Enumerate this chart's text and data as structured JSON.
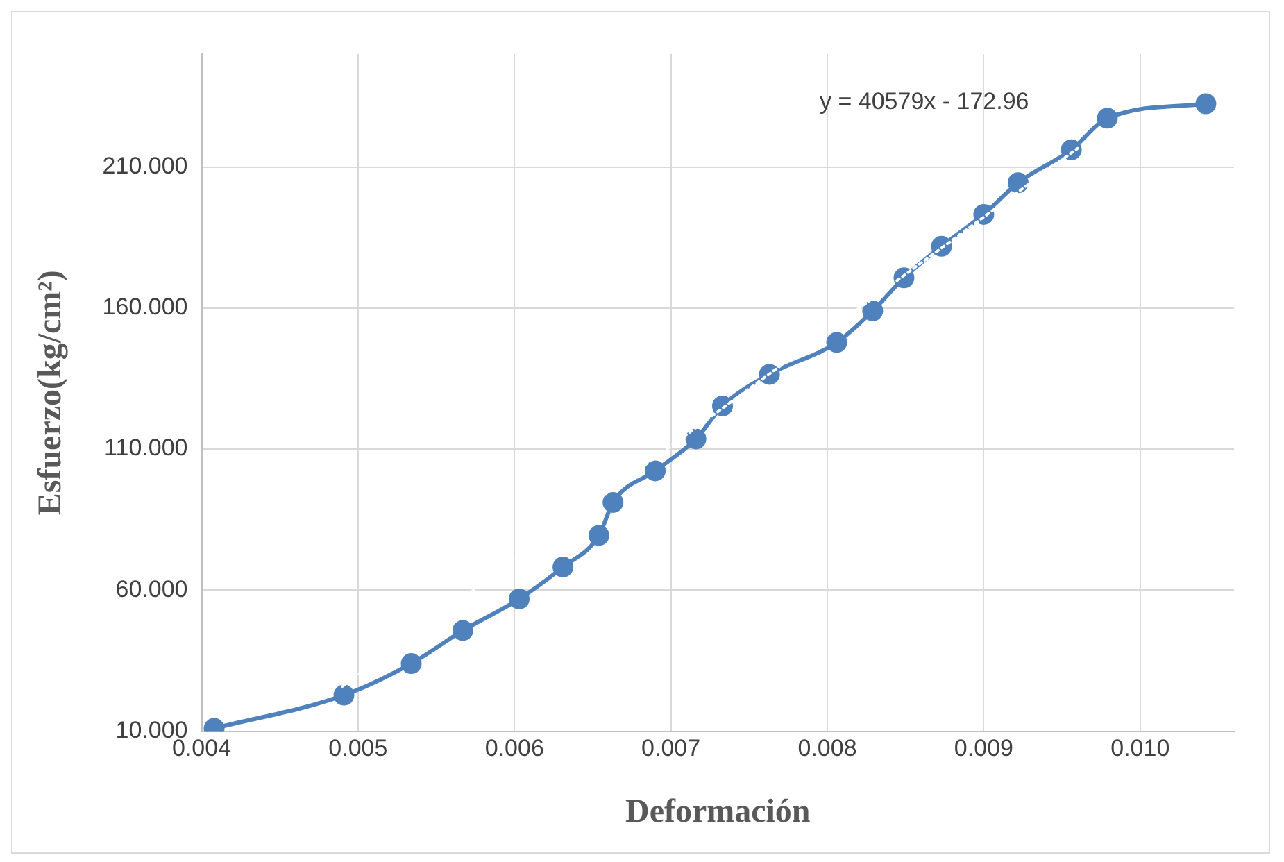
{
  "chart_data": {
    "type": "line",
    "xlabel": "Deformación",
    "ylabel": "Esfuerzo(kg/cm²)",
    "annotations": [
      "y = 40579x - 172.96"
    ],
    "series": [
      {
        "type": "line",
        "color": "#4f81bd",
        "marker": "circle",
        "line_style": "solid",
        "x": [
          0.00408,
          0.00491,
          0.00534,
          0.00567,
          0.00603,
          0.00631,
          0.00654,
          0.00663,
          0.0069,
          0.00716,
          0.00733,
          0.00763,
          0.00806,
          0.00829,
          0.00849,
          0.00873,
          0.009,
          0.00922,
          0.00956,
          0.00979,
          0.01042
        ],
        "values": [
          11.0,
          22.8,
          34.0,
          45.7,
          56.9,
          68.2,
          79.4,
          91.1,
          102.3,
          113.6,
          125.3,
          136.5,
          147.8,
          159.0,
          170.7,
          181.9,
          193.2,
          204.4,
          216.1,
          227.3,
          232.4
        ]
      },
      {
        "type": "line",
        "color": "#ffffff",
        "marker": "none",
        "line_style": "dotted",
        "x": [
          0.0049,
          0.0096
        ],
        "values": [
          25.9,
          216.6
        ]
      }
    ],
    "xlim": [
      0.004,
      0.0106
    ],
    "xticks": [
      {
        "value": 0.004,
        "label": "0.004"
      },
      {
        "value": 0.005,
        "label": "0.005"
      },
      {
        "value": 0.006,
        "label": "0.006"
      },
      {
        "value": 0.007,
        "label": "0.007"
      },
      {
        "value": 0.008,
        "label": "0.008"
      },
      {
        "value": 0.009,
        "label": "0.009"
      },
      {
        "value": 0.01,
        "label": "0.010"
      }
    ],
    "ylim": [
      10,
      250
    ],
    "yticks": [
      {
        "value": 10,
        "label": "10.000"
      },
      {
        "value": 60,
        "label": "60.000"
      },
      {
        "value": 110,
        "label": "110.000"
      },
      {
        "value": 160,
        "label": "160.000"
      },
      {
        "value": 210,
        "label": "210.000"
      }
    ],
    "grid": true,
    "legend": false
  }
}
